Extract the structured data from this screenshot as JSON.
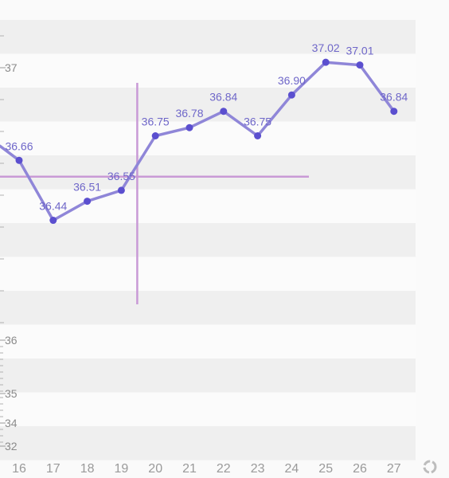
{
  "chart_data": {
    "type": "line",
    "title": "",
    "xlabel": "",
    "ylabel": "",
    "x": [
      "16",
      "17",
      "18",
      "19",
      "20",
      "21",
      "22",
      "23",
      "24",
      "25",
      "26",
      "27"
    ],
    "values": [
      36.66,
      36.44,
      36.51,
      36.55,
      36.75,
      36.78,
      36.84,
      36.75,
      36.9,
      37.02,
      37.01,
      36.84
    ],
    "data_labels": [
      "36.66",
      "36.44",
      "36.51",
      "36.55",
      "36.75",
      "36.78",
      "36.84",
      "36.75",
      "36.90",
      "37.02",
      "37.01",
      "36.84"
    ],
    "y_ticks": [
      {
        "value": 37,
        "label": "37"
      },
      {
        "value": 36,
        "label": "36"
      },
      {
        "value": 35,
        "label": "35"
      },
      {
        "value": 34,
        "label": "34"
      },
      {
        "value": 32,
        "label": "32"
      }
    ],
    "y_axis_scale": "non-linear (compressed below 36)",
    "grid": "horizontal alternating bands",
    "legend": "none",
    "crosshair": {
      "x": "19",
      "y": 36.6
    },
    "colors": {
      "line": "#8f86d8",
      "point": "#5b4fcf",
      "label": "#6f67c9",
      "crosshair": "#c99ad6",
      "band": "#efefef",
      "background": "#fafafa",
      "axis_text": "#8a8a8a"
    }
  },
  "controls": {
    "reset_icon": "refresh-icon"
  }
}
